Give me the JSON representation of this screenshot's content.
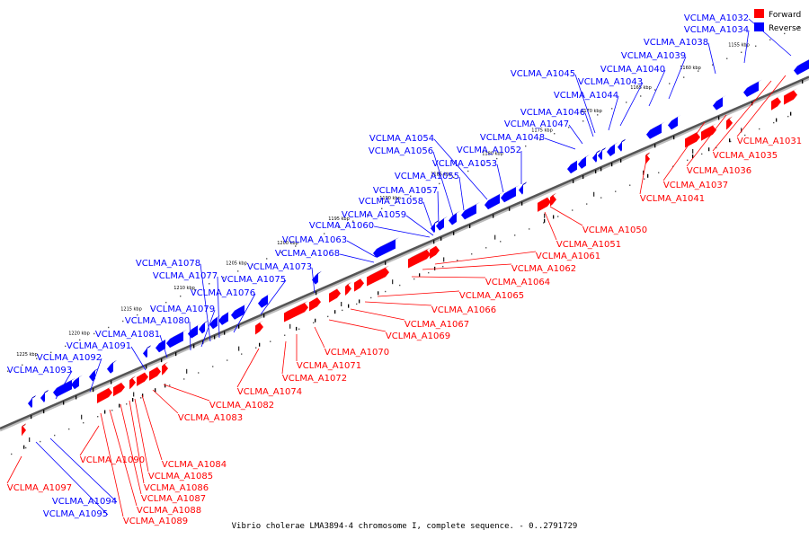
{
  "colors": {
    "forward": "#ff0000",
    "reverse": "#0000ff",
    "backbone": "#555555"
  },
  "legend": {
    "forward_label": "Forward",
    "reverse_label": "Reverse"
  },
  "caption": "Vibrio cholerae LMA3894-4 chromosome I, complete sequence. - 0..2791729",
  "ticks": [
    "1155 kbp",
    "1160 kbp",
    "1165 kbp",
    "1170 kbp",
    "1175 kbp",
    "1180 kbp",
    "1185 kbp",
    "1190 kbp",
    "1195 kbp",
    "1200 kbp",
    "1205 kbp",
    "1210 kbp",
    "1215 kbp",
    "1220 kbp",
    "1225 kbp"
  ],
  "reverse_genes": [
    "VCLMA_A1032",
    "VCLMA_A1034",
    "VCLMA_A1038",
    "VCLMA_A1039",
    "VCLMA_A1040",
    "VCLMA_A1043",
    "VCLMA_A1044",
    "VCLMA_A1045",
    "VCLMA_A1046",
    "VCLMA_A1047",
    "VCLMA_A1048",
    "VCLMA_A1052",
    "VCLMA_A1053",
    "VCLMA_A1054",
    "VCLMA_A1055",
    "VCLMA_A1056",
    "VCLMA_A1057",
    "VCLMA_A1058",
    "VCLMA_A1059",
    "VCLMA_A1060",
    "VCLMA_A1063",
    "VCLMA_A1068",
    "VCLMA_A1073",
    "VCLMA_A1075",
    "VCLMA_A1076",
    "VCLMA_A1077",
    "VCLMA_A1078",
    "VCLMA_A1079",
    "VCLMA_A1080",
    "VCLMA_A1081",
    "VCLMA_A1091",
    "VCLMA_A1092",
    "VCLMA_A1093",
    "VCLMA_A1094",
    "VCLMA_A1095"
  ],
  "forward_genes": [
    "VCLMA_A1031",
    "VCLMA_A1035",
    "VCLMA_A1036",
    "VCLMA_A1037",
    "VCLMA_A1041",
    "VCLMA_A1050",
    "VCLMA_A1051",
    "VCLMA_A1061",
    "VCLMA_A1062",
    "VCLMA_A1064",
    "VCLMA_A1065",
    "VCLMA_A1066",
    "VCLMA_A1067",
    "VCLMA_A1069",
    "VCLMA_A1070",
    "VCLMA_A1071",
    "VCLMA_A1072",
    "VCLMA_A1074",
    "VCLMA_A1082",
    "VCLMA_A1083",
    "VCLMA_A1084",
    "VCLMA_A1085",
    "VCLMA_A1086",
    "VCLMA_A1087",
    "VCLMA_A1088",
    "VCLMA_A1089",
    "VCLMA_A1090",
    "VCLMA_A1097"
  ]
}
